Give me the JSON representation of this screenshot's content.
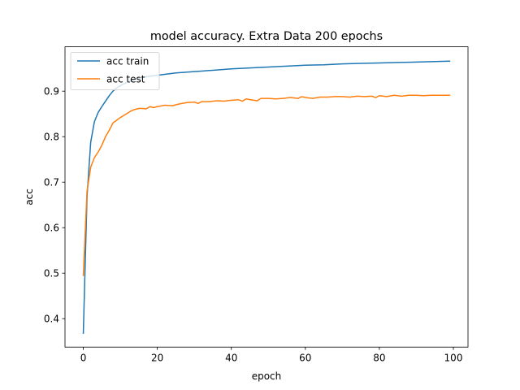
{
  "chart_data": {
    "type": "line",
    "title": "model accuracy. Extra Data 200 epochs",
    "xlabel": "epoch",
    "ylabel": "acc",
    "xlim": [
      -4.95,
      103.95
    ],
    "ylim": [
      0.3375,
      0.9975
    ],
    "xticks": [
      0,
      20,
      40,
      60,
      80,
      100
    ],
    "yticks": [
      0.4,
      0.5,
      0.6,
      0.7,
      0.8,
      0.9
    ],
    "grid": false,
    "legend_position": "upper-left",
    "series": [
      {
        "name": "acc train",
        "color": "#1f77b4",
        "x": [
          0,
          1,
          2,
          3,
          4,
          5,
          6,
          7,
          8,
          9,
          10,
          12,
          14,
          16,
          18,
          20,
          25,
          30,
          35,
          40,
          45,
          50,
          55,
          60,
          65,
          70,
          75,
          80,
          85,
          90,
          95,
          99
        ],
        "y": [
          0.368,
          0.668,
          0.788,
          0.833,
          0.853,
          0.866,
          0.878,
          0.89,
          0.9,
          0.907,
          0.912,
          0.92,
          0.926,
          0.93,
          0.933,
          0.935,
          0.94,
          0.943,
          0.946,
          0.949,
          0.951,
          0.953,
          0.955,
          0.957,
          0.958,
          0.96,
          0.961,
          0.962,
          0.963,
          0.964,
          0.965,
          0.966
        ]
      },
      {
        "name": "acc test",
        "color": "#ff7f0e",
        "x": [
          0,
          1,
          2,
          3,
          4,
          5,
          6,
          7,
          8,
          9,
          10,
          11,
          12,
          13,
          14,
          15,
          16,
          17,
          18,
          19,
          20,
          22,
          24,
          26,
          28,
          30,
          31,
          32,
          34,
          36,
          38,
          40,
          42,
          43,
          44,
          46,
          47,
          48,
          50,
          52,
          54,
          56,
          58,
          59,
          60,
          62,
          64,
          66,
          68,
          70,
          72,
          74,
          76,
          78,
          79,
          80,
          82,
          84,
          86,
          88,
          90,
          92,
          94,
          96,
          98,
          99
        ],
        "y": [
          0.495,
          0.68,
          0.733,
          0.754,
          0.766,
          0.781,
          0.8,
          0.814,
          0.83,
          0.836,
          0.842,
          0.847,
          0.852,
          0.857,
          0.86,
          0.862,
          0.862,
          0.861,
          0.866,
          0.864,
          0.866,
          0.869,
          0.868,
          0.872,
          0.875,
          0.876,
          0.873,
          0.877,
          0.877,
          0.879,
          0.878,
          0.88,
          0.881,
          0.878,
          0.883,
          0.88,
          0.879,
          0.884,
          0.884,
          0.883,
          0.884,
          0.886,
          0.884,
          0.888,
          0.886,
          0.884,
          0.887,
          0.887,
          0.888,
          0.888,
          0.887,
          0.889,
          0.888,
          0.889,
          0.886,
          0.89,
          0.888,
          0.891,
          0.889,
          0.891,
          0.891,
          0.89,
          0.891,
          0.891,
          0.891,
          0.891
        ]
      }
    ]
  }
}
